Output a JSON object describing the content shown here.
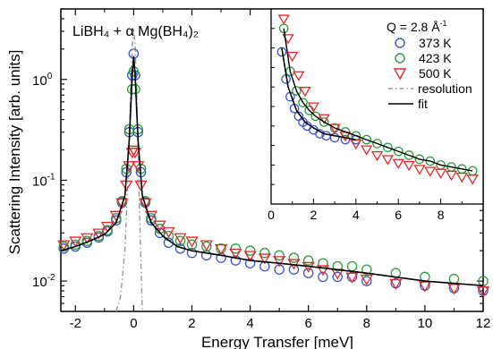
{
  "chart_data": [
    {
      "type": "scatter",
      "panel": "main",
      "title": "LiBH₄ + α Mg(BH₄)₂",
      "xlabel": "Energy Transfer [meV]",
      "ylabel": "Scattering Intensity [arb. units]",
      "x_scale": "linear",
      "y_scale": "log",
      "xlim": [
        -2.5,
        12
      ],
      "ylim": [
        0.005,
        5
      ],
      "x_ticks": [
        -2,
        0,
        2,
        4,
        6,
        8,
        10,
        12
      ],
      "x_tick_labels": [
        "-2",
        "0",
        "2",
        "4",
        "6",
        "8",
        "10",
        "12"
      ],
      "y_tick_labels": [
        {
          "base": "10",
          "exp": "0",
          "value": 1
        },
        {
          "base": "10",
          "exp": "-1",
          "value": 0.1
        },
        {
          "base": "10",
          "exp": "-2",
          "value": 0.01
        }
      ],
      "series": [
        {
          "name": "373 K",
          "marker": "circle",
          "color": "#3b55c8",
          "x": [
            -2.4,
            -2.0,
            -1.6,
            -1.2,
            -0.9,
            -0.6,
            -0.4,
            -0.25,
            -0.15,
            -0.05,
            0.0,
            0.05,
            0.15,
            0.25,
            0.4,
            0.6,
            0.9,
            1.2,
            1.6,
            2.0,
            2.5,
            3.0,
            3.5,
            4.0,
            4.5,
            5.0,
            5.5,
            6.0,
            6.5,
            7.0,
            7.5,
            8.0,
            9.0,
            10.0,
            11.0,
            12.0
          ],
          "y": [
            0.021,
            0.022,
            0.024,
            0.027,
            0.031,
            0.04,
            0.06,
            0.12,
            0.3,
            1.1,
            1.8,
            1.1,
            0.3,
            0.12,
            0.06,
            0.04,
            0.03,
            0.024,
            0.021,
            0.019,
            0.018,
            0.017,
            0.016,
            0.015,
            0.014,
            0.013,
            0.013,
            0.012,
            0.011,
            0.011,
            0.011,
            0.01,
            0.0095,
            0.009,
            0.0085,
            0.008
          ]
        },
        {
          "name": "423 K",
          "marker": "circle",
          "color": "#2e9a3e",
          "x": [
            -2.4,
            -2.0,
            -1.6,
            -1.2,
            -0.9,
            -0.6,
            -0.4,
            -0.25,
            -0.15,
            -0.05,
            0.0,
            0.05,
            0.15,
            0.25,
            0.4,
            0.6,
            0.9,
            1.2,
            1.6,
            2.0,
            2.5,
            3.0,
            3.5,
            4.0,
            4.5,
            5.0,
            5.5,
            6.0,
            6.5,
            7.0,
            7.5,
            8.0,
            9.0,
            10.0,
            11.0,
            12.0
          ],
          "y": [
            0.022,
            0.023,
            0.025,
            0.028,
            0.032,
            0.042,
            0.062,
            0.13,
            0.32,
            0.8,
            1.2,
            0.8,
            0.32,
            0.13,
            0.062,
            0.042,
            0.033,
            0.028,
            0.025,
            0.023,
            0.022,
            0.021,
            0.021,
            0.02,
            0.019,
            0.018,
            0.017,
            0.016,
            0.015,
            0.014,
            0.014,
            0.013,
            0.012,
            0.011,
            0.0105,
            0.01
          ]
        },
        {
          "name": "500 K",
          "marker": "triangle-down",
          "color": "#e02a2a",
          "x": [
            -2.4,
            -2.0,
            -1.6,
            -1.2,
            -0.9,
            -0.6,
            -0.4,
            -0.25,
            -0.15,
            -0.05,
            0.0,
            0.05,
            0.15,
            0.25,
            0.4,
            0.6,
            0.9,
            1.2,
            1.6,
            2.0,
            2.5,
            3.0,
            3.5,
            4.0,
            4.5,
            5.0,
            5.5,
            6.0,
            6.5,
            7.0,
            7.5,
            8.0,
            9.0,
            10.0,
            11.0,
            12.0
          ],
          "y": [
            0.023,
            0.025,
            0.027,
            0.03,
            0.035,
            0.045,
            0.06,
            0.09,
            0.14,
            0.19,
            0.2,
            0.19,
            0.14,
            0.09,
            0.06,
            0.045,
            0.036,
            0.031,
            0.027,
            0.025,
            0.023,
            0.021,
            0.019,
            0.018,
            0.017,
            0.016,
            0.015,
            0.014,
            0.013,
            0.012,
            0.011,
            0.0105,
            0.0095,
            0.009,
            0.0085,
            0.008
          ]
        },
        {
          "name": "resolution",
          "style": "dash-dot",
          "color": "#999999",
          "x": [
            -0.6,
            -0.45,
            -0.3,
            -0.2,
            -0.1,
            -0.05,
            0.0,
            0.05,
            0.1,
            0.2,
            0.3
          ],
          "y": [
            0.005,
            0.007,
            0.02,
            0.1,
            0.8,
            2.2,
            3.2,
            2.2,
            0.8,
            0.05,
            0.005
          ]
        },
        {
          "name": "fit",
          "style": "solid",
          "color": "#000000",
          "x": [
            -2.5,
            -2.0,
            -1.5,
            -1.0,
            -0.6,
            -0.3,
            -0.15,
            -0.05,
            0.0,
            0.05,
            0.15,
            0.3,
            0.6,
            1.0,
            1.5,
            2.0,
            3.0,
            4.0,
            5.0,
            6.0,
            8.0,
            10.0,
            12.0
          ],
          "y": [
            0.02,
            0.022,
            0.025,
            0.029,
            0.038,
            0.07,
            0.25,
            1.1,
            1.7,
            1.1,
            0.25,
            0.07,
            0.038,
            0.028,
            0.022,
            0.02,
            0.018,
            0.016,
            0.015,
            0.014,
            0.012,
            0.01,
            0.009
          ]
        }
      ]
    },
    {
      "type": "scatter",
      "panel": "inset",
      "title": "",
      "xlabel": "",
      "ylabel": "",
      "x_scale": "linear",
      "y_scale": "linear",
      "xlim": [
        0,
        10
      ],
      "ylim": [
        0,
        1
      ],
      "x_ticks": [
        0,
        2,
        4,
        6,
        8
      ],
      "x_tick_labels": [
        "0",
        "2",
        "4",
        "6",
        "8"
      ],
      "annotation_q": "Q = 2.8 Å",
      "annotation_q_sup": "-1",
      "legend": [
        "373 K",
        "423 K",
        "500 K",
        "resolution",
        "fit"
      ],
      "legend_position": "top-right",
      "series": [
        {
          "name": "373 K",
          "x": [
            0.5,
            0.7,
            0.9,
            1.1,
            1.3,
            1.5,
            1.7,
            2.0,
            2.3,
            2.6,
            3.0,
            3.5,
            4.0
          ],
          "y": [
            0.78,
            0.64,
            0.55,
            0.49,
            0.45,
            0.42,
            0.4,
            0.38,
            0.36,
            0.35,
            0.34,
            0.33,
            0.33
          ]
        },
        {
          "name": "423 K",
          "x": [
            0.6,
            0.9,
            1.2,
            1.5,
            1.8,
            2.1,
            2.5,
            3.0,
            3.5,
            4.0,
            4.5,
            5.0,
            5.5,
            6.0,
            6.5,
            7.0,
            7.5,
            8.0,
            8.5,
            9.0,
            9.5
          ],
          "y": [
            0.9,
            0.68,
            0.58,
            0.52,
            0.48,
            0.45,
            0.42,
            0.39,
            0.37,
            0.35,
            0.33,
            0.31,
            0.29,
            0.27,
            0.25,
            0.23,
            0.22,
            0.2,
            0.19,
            0.18,
            0.17
          ]
        },
        {
          "name": "500 K",
          "x": [
            0.6,
            0.8,
            1.0,
            1.3,
            1.6,
            2.0,
            2.5,
            3.0,
            3.5,
            4.0,
            4.5,
            5.0,
            5.5,
            6.0,
            6.5,
            7.0,
            7.5,
            8.0,
            8.5,
            9.0,
            9.5
          ],
          "y": [
            0.95,
            0.85,
            0.76,
            0.66,
            0.58,
            0.5,
            0.44,
            0.39,
            0.35,
            0.31,
            0.28,
            0.25,
            0.23,
            0.21,
            0.2,
            0.18,
            0.17,
            0.16,
            0.15,
            0.14,
            0.13
          ]
        },
        {
          "name": "fit",
          "x": [
            0.5,
            0.8,
            1.2,
            1.6,
            2.0,
            2.5,
            3.0,
            3.5,
            4.0
          ],
          "y": [
            0.8,
            0.6,
            0.48,
            0.42,
            0.39,
            0.36,
            0.35,
            0.34,
            0.33
          ]
        }
      ]
    }
  ]
}
